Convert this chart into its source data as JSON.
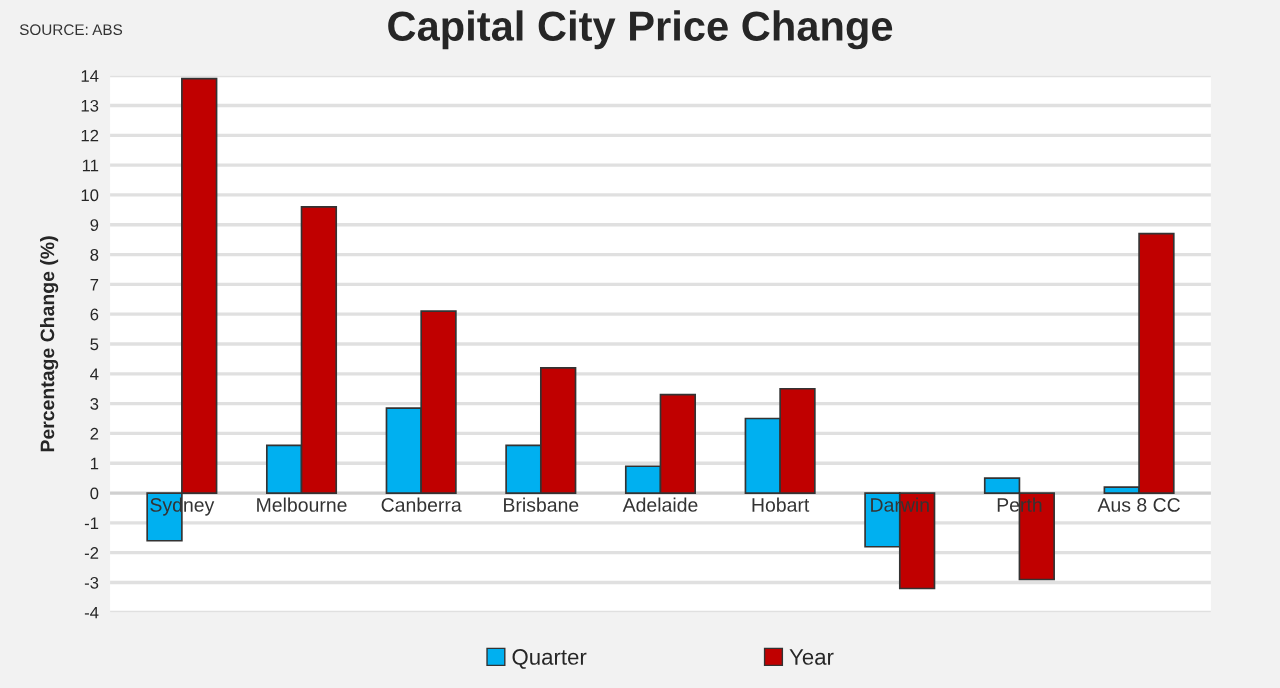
{
  "chart_data": {
    "type": "bar",
    "title": "Capital City Price Change",
    "ylabel": "Percentage Change (%)",
    "annotations": [
      "SOURCE: ABS"
    ],
    "categories": [
      "Sydney",
      "Melbourne",
      "Canberra",
      "Brisbane",
      "Adelaide",
      "Hobart",
      "Darwin",
      "Perth",
      "Aus 8 CC"
    ],
    "series": [
      {
        "name": "Quarter",
        "color": "#00b0f0",
        "values": [
          -1.6,
          1.6,
          2.85,
          1.6,
          0.9,
          2.5,
          -1.8,
          0.5,
          0.2
        ]
      },
      {
        "name": "Year",
        "color": "#c00000",
        "values": [
          13.9,
          9.6,
          6.1,
          4.2,
          3.3,
          3.5,
          -3.2,
          -2.9,
          8.7
        ]
      }
    ],
    "ylim": [
      -4,
      14
    ],
    "yticks": [
      -4,
      -3,
      -2,
      -1,
      0,
      1,
      2,
      3,
      4,
      5,
      6,
      7,
      8,
      9,
      10,
      11,
      12,
      13,
      14
    ],
    "grid": "y",
    "legend": "bottom"
  }
}
